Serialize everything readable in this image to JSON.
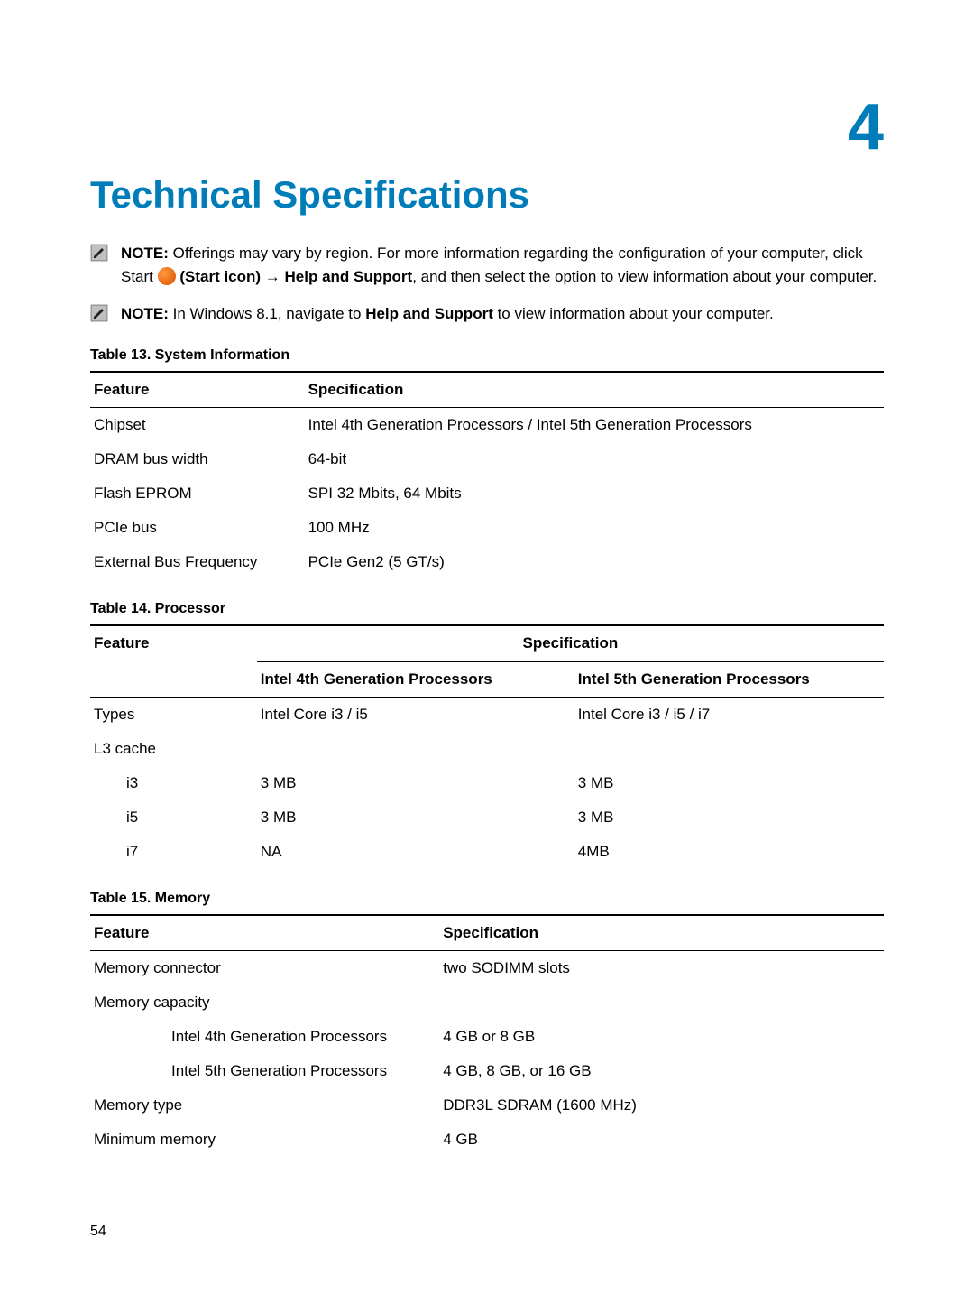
{
  "chapter_number": "4",
  "page_title": "Technical Specifications",
  "page_number": "54",
  "notes": [
    {
      "label": "NOTE:",
      "text_before": " Offerings may vary by region. For more information regarding the configuration of your computer, click Start ",
      "bold_mid": " (Start icon) → Help and Support",
      "text_after": ", and then select the option to view information about your computer.",
      "has_start_icon": true
    },
    {
      "label": "NOTE:",
      "text_before": " In Windows 8.1, navigate to ",
      "bold_mid": "Help and Support",
      "text_after": " to view information about your computer.",
      "has_start_icon": false
    }
  ],
  "tables": {
    "sysinfo": {
      "caption": "Table 13. System Information",
      "head": [
        "Feature",
        "Specification"
      ],
      "rows": [
        [
          "Chipset",
          "Intel 4th Generation Processors / Intel 5th Generation Processors"
        ],
        [
          "DRAM bus width",
          "64-bit"
        ],
        [
          "Flash EPROM",
          "SPI 32 Mbits, 64 Mbits"
        ],
        [
          "PCIe bus",
          "100 MHz"
        ],
        [
          "External Bus Frequency",
          "PCIe Gen2 (5 GT/s)"
        ]
      ]
    },
    "processor": {
      "caption": "Table 14. Processor",
      "head_top": [
        "Feature",
        "Specification"
      ],
      "head_sub": [
        "Intel 4th Generation Processors",
        "Intel 5th Generation Processors"
      ],
      "rows": [
        {
          "f": "Types",
          "c1": "Intel Core i3 / i5",
          "c2": "Intel Core i3 / i5 / i7",
          "indent": 0
        },
        {
          "f": "L3 cache",
          "c1": "",
          "c2": "",
          "indent": 0
        },
        {
          "f": "i3",
          "c1": "3 MB",
          "c2": "3 MB",
          "indent": 1
        },
        {
          "f": "i5",
          "c1": "3 MB",
          "c2": "3 MB",
          "indent": 1
        },
        {
          "f": "i7",
          "c1": "NA",
          "c2": "4MB",
          "indent": 1
        }
      ]
    },
    "memory": {
      "caption": "Table 15. Memory",
      "head": [
        "Feature",
        "Specification"
      ],
      "rows": [
        {
          "f": "Memory connector",
          "s": "two SODIMM slots",
          "indent": 0
        },
        {
          "f": "Memory capacity",
          "s": "",
          "indent": 0
        },
        {
          "f": "Intel 4th Generation Processors",
          "s": "4 GB or 8 GB",
          "indent": 2
        },
        {
          "f": "Intel 5th Generation Processors",
          "s": "4 GB, 8 GB, or 16 GB",
          "indent": 2
        },
        {
          "f": "Memory type",
          "s": "DDR3L SDRAM (1600 MHz)",
          "indent": 0
        },
        {
          "f": "Minimum memory",
          "s": "4 GB",
          "indent": 0
        }
      ]
    }
  }
}
